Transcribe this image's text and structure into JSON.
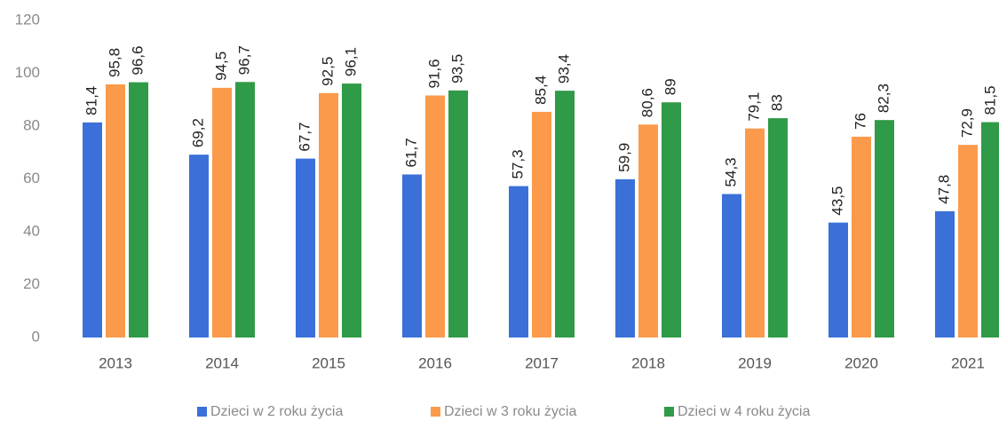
{
  "chart_data": {
    "type": "bar",
    "categories": [
      "2013",
      "2014",
      "2015",
      "2016",
      "2017",
      "2018",
      "2019",
      "2020",
      "2021"
    ],
    "series": [
      {
        "name": "Dzieci w 2 roku życia",
        "color": "#3b70d9",
        "values": [
          81.4,
          69.2,
          67.7,
          61.7,
          57.3,
          59.9,
          54.3,
          43.5,
          47.8
        ],
        "value_labels": [
          "81,4",
          "69,2",
          "67,7",
          "61,7",
          "57,3",
          "59,9",
          "54,3",
          "43,5",
          "47,8"
        ]
      },
      {
        "name": "Dzieci w 3 roku życia",
        "color": "#fb9a4b",
        "values": [
          95.8,
          94.5,
          92.5,
          91.6,
          85.4,
          80.6,
          79.1,
          76,
          72.9
        ],
        "value_labels": [
          "95,8",
          "94,5",
          "92,5",
          "91,6",
          "85,4",
          "80,6",
          "79,1",
          "76",
          "72,9"
        ]
      },
      {
        "name": "Dzieci w 4 roku życia",
        "color": "#2f9a48",
        "values": [
          96.6,
          96.7,
          96.1,
          93.5,
          93.4,
          89,
          83,
          82.3,
          81.5
        ],
        "value_labels": [
          "96,6",
          "96,7",
          "96,1",
          "93,5",
          "93,4",
          "89",
          "83",
          "82,3",
          "81,5"
        ]
      }
    ],
    "ylim": [
      0,
      120
    ],
    "yticks": [
      0,
      20,
      40,
      60,
      80,
      100,
      120
    ],
    "grid": false,
    "legend": "bottom"
  }
}
